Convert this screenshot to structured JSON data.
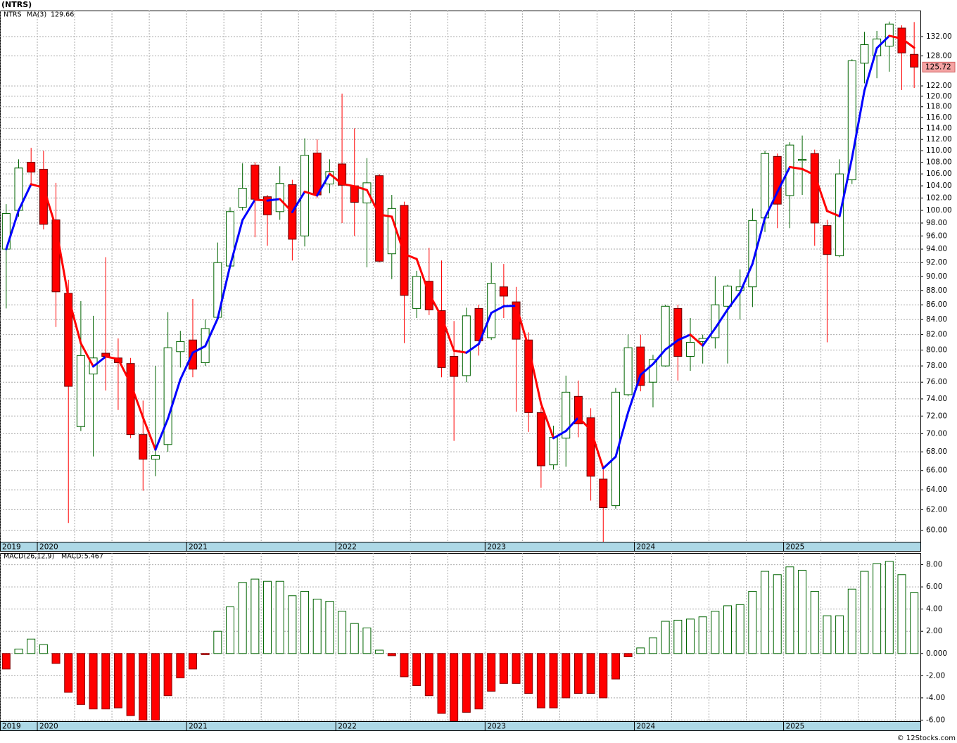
{
  "chart_data": [
    {
      "type": "candlestick",
      "title": "(NTRS)",
      "log": true,
      "grid": true,
      "categories": [
        "2019",
        null,
        null,
        "2020",
        null,
        null,
        null,
        null,
        null,
        null,
        null,
        null,
        null,
        null,
        null,
        "2021",
        null,
        null,
        null,
        null,
        null,
        null,
        null,
        null,
        null,
        null,
        null,
        "2022",
        null,
        null,
        null,
        null,
        null,
        null,
        null,
        null,
        null,
        null,
        null,
        "2023",
        null,
        null,
        null,
        null,
        null,
        null,
        null,
        null,
        null,
        null,
        null,
        "2024",
        null,
        null,
        null,
        null,
        null,
        null,
        null,
        null,
        null,
        null,
        null,
        "2025",
        null,
        null,
        null,
        null,
        null,
        null,
        null,
        null,
        null,
        null
      ],
      "series": [
        {
          "name": "NTRS",
          "up_color": "#006400",
          "down_color": "#ff0000",
          "open": [
            94,
            100,
            108,
            106.8,
            98.5,
            87.6,
            70.8,
            77,
            79.6,
            79,
            78.3,
            69.9,
            67.2,
            68.8,
            79.8,
            81.3,
            78.4,
            84.3,
            91.5,
            100.5,
            107.5,
            102.2,
            99.8,
            104.2,
            96,
            109.6,
            104.3,
            107.7,
            104,
            101.2,
            105.7,
            93.3,
            100.8,
            85.5,
            89.3,
            85.2,
            79.2,
            76.8,
            85.5,
            81.6,
            88.5,
            86.4,
            81.3,
            72.4,
            66.6,
            69.5,
            74.3,
            71.8,
            65.1,
            62.4,
            74.5,
            80.4,
            76,
            78,
            85.5,
            79.2,
            81.1,
            81.6,
            85.8,
            88,
            88.5,
            98.8,
            109,
            102.4,
            108.3,
            109.5,
            97.6,
            93,
            105,
            126.5,
            128,
            130,
            133.8,
            128.3
          ],
          "high": [
            101,
            108.5,
            110.5,
            110,
            104.5,
            89.5,
            86.5,
            84.5,
            92.8,
            81.5,
            79,
            73.8,
            78,
            85,
            82.5,
            86.8,
            84,
            95,
            100.5,
            107.8,
            108,
            102.5,
            107.3,
            105,
            112.2,
            112,
            108.5,
            120.5,
            114,
            108.7,
            106,
            102.5,
            101.4,
            90.8,
            94.2,
            92.3,
            83.8,
            85.6,
            86,
            92,
            91.8,
            88.5,
            82.3,
            73,
            70.9,
            76.8,
            76.2,
            72.9,
            66.2,
            75.3,
            82,
            82,
            79.4,
            86,
            86,
            84.2,
            82,
            90,
            88.8,
            91,
            100.3,
            110,
            109.5,
            111.5,
            112.7,
            110.2,
            98.5,
            108.5,
            127.3,
            133,
            133.2,
            135.2,
            134.4,
            135.1
          ],
          "low": [
            85.5,
            99,
            104,
            97,
            83,
            60.7,
            70.3,
            67.5,
            75,
            72.7,
            69.5,
            63.9,
            65.4,
            68,
            77.8,
            76.6,
            78,
            84,
            91,
            100,
            95.8,
            94.5,
            98.5,
            92.3,
            94.4,
            102,
            102.8,
            98,
            96,
            91.3,
            92,
            89.6,
            80.9,
            84.2,
            84.6,
            76.6,
            69.2,
            76,
            79.3,
            81.3,
            84.2,
            72.5,
            70.2,
            64.2,
            66.1,
            66.4,
            69.6,
            62.9,
            58.9,
            62.1,
            74.3,
            74.9,
            73,
            77.9,
            76.2,
            77.4,
            78.3,
            80.2,
            78.3,
            84,
            85.7,
            96.6,
            97.2,
            97.2,
            102.5,
            94.5,
            81,
            92.8,
            104.3,
            122.5,
            123.5,
            124.8,
            121.2,
            121.6
          ],
          "close": [
            99.5,
            107,
            106.3,
            97.8,
            87.8,
            75.5,
            79.3,
            79,
            79.2,
            78.4,
            69.9,
            67.2,
            67.6,
            80.3,
            81.1,
            77.6,
            82.8,
            92,
            99.8,
            103.6,
            101.8,
            99.3,
            104.4,
            95.5,
            109.2,
            102.5,
            106.4,
            104.1,
            101.3,
            104.5,
            92.2,
            100.3,
            87.3,
            90,
            85.3,
            77.8,
            76.7,
            84.5,
            81.2,
            89,
            87.2,
            81.4,
            72.4,
            66.5,
            69.6,
            74.8,
            71.1,
            65.4,
            62.2,
            74.8,
            80.3,
            75.6,
            78.8,
            85.8,
            79.2,
            81,
            81.5,
            86,
            88.6,
            88.5,
            98.4,
            109.5,
            101,
            111,
            108.5,
            98,
            93.2,
            106,
            127,
            130.3,
            131.5,
            134.66,
            128.6,
            125.72
          ]
        }
      ],
      "ma": {
        "name": "MA(3)",
        "up_color": "#0000ff",
        "down_color": "#ff0000",
        "values": [
          94,
          100,
          104.27,
          103.7,
          97.3,
          87.03,
          80.87,
          77.93,
          79.17,
          78.87,
          75.83,
          71.83,
          68.23,
          71.7,
          76.33,
          79.67,
          80.5,
          84.13,
          91.53,
          98.47,
          101.73,
          101.57,
          101.83,
          99.73,
          103.03,
          102.4,
          106.03,
          104.33,
          103.93,
          103.3,
          99.33,
          99,
          93.27,
          92.53,
          87.53,
          84.37,
          79.93,
          79.67,
          80.8,
          84.9,
          85.8,
          85.87,
          80.33,
          73.43,
          69.5,
          70.3,
          71.83,
          70.43,
          66.23,
          67.47,
          72.43,
          76.9,
          78.23,
          80.07,
          81.27,
          82,
          80.57,
          82.83,
          85.37,
          87.7,
          91.83,
          98.8,
          102.97,
          107.17,
          106.83,
          105.83,
          99.9,
          99.07,
          108.73,
          121.1,
          129.6,
          132.15,
          131.59,
          129.66
        ]
      },
      "ylim": [
        58.9,
        137.6
      ],
      "yticks": [
        {
          "value": 60,
          "label": "60.00"
        },
        {
          "value": 62,
          "label": "62.00"
        },
        {
          "value": 64,
          "label": "64.00"
        },
        {
          "value": 66,
          "label": "66.00"
        },
        {
          "value": 68,
          "label": "68.00"
        },
        {
          "value": 70,
          "label": "70.00"
        },
        {
          "value": 72,
          "label": "72.00"
        },
        {
          "value": 74,
          "label": "74.00"
        },
        {
          "value": 76,
          "label": "76.00"
        },
        {
          "value": 78,
          "label": "78.00"
        },
        {
          "value": 80,
          "label": "80.00"
        },
        {
          "value": 82,
          "label": "82.00"
        },
        {
          "value": 84,
          "label": "84.00"
        },
        {
          "value": 86,
          "label": "86.00"
        },
        {
          "value": 88,
          "label": "88.00"
        },
        {
          "value": 90,
          "label": "90.00"
        },
        {
          "value": 92,
          "label": "92.00"
        },
        {
          "value": 94,
          "label": "94.00"
        },
        {
          "value": 96,
          "label": "96.00"
        },
        {
          "value": 98,
          "label": "98.00"
        },
        {
          "value": 100,
          "label": "100.00"
        },
        {
          "value": 102,
          "label": "102.00"
        },
        {
          "value": 104,
          "label": "104.00"
        },
        {
          "value": 106,
          "label": "106.00"
        },
        {
          "value": 108,
          "label": "108.00"
        },
        {
          "value": 110,
          "label": "110.00"
        },
        {
          "value": 112,
          "label": "112.00"
        },
        {
          "value": 114,
          "label": "114.00"
        },
        {
          "value": 116,
          "label": "116.00"
        },
        {
          "value": 118,
          "label": "118.00"
        },
        {
          "value": 120,
          "label": "120.00"
        },
        {
          "value": 122,
          "label": "122.00"
        },
        {
          "value": 128,
          "label": "128.00"
        },
        {
          "value": 132,
          "label": "132.00"
        }
      ]
    },
    {
      "type": "bar",
      "title": "MACD(26,12,9)",
      "grid": true,
      "series": [
        {
          "name": "MACD:",
          "up_color": "#006400",
          "down_color": "#ff0000",
          "values": [
            -1.4,
            0.4,
            1.3,
            0.8,
            -0.9,
            -3.5,
            -4.6,
            -5.0,
            -5.0,
            -4.9,
            -5.6,
            -6.0,
            -6.0,
            -3.8,
            -2.2,
            -1.4,
            -0.1,
            2.0,
            4.2,
            6.4,
            6.7,
            6.5,
            6.5,
            5.2,
            5.6,
            4.9,
            4.7,
            3.8,
            2.7,
            2.3,
            0.3,
            -0.2,
            -2.1,
            -2.9,
            -3.8,
            -5.4,
            -6.1,
            -5.3,
            -5.0,
            -3.4,
            -2.7,
            -2.7,
            -3.6,
            -4.9,
            -4.9,
            -4.0,
            -3.6,
            -3.6,
            -4.0,
            -2.3,
            -0.3,
            0.5,
            1.4,
            2.9,
            3.0,
            3.1,
            3.3,
            3.8,
            4.3,
            4.4,
            5.6,
            7.4,
            7.1,
            7.8,
            7.5,
            5.6,
            3.4,
            3.4,
            5.8,
            7.4,
            8.1,
            8.3,
            7.1,
            5.467
          ]
        }
      ],
      "ylim": [
        -6.1,
        9.05
      ],
      "yticks": [
        {
          "value": -6,
          "label": "-6.00"
        },
        {
          "value": -4,
          "label": "-4.00"
        },
        {
          "value": -2,
          "label": "-2.00"
        },
        {
          "value": 0,
          "label": "0.000"
        },
        {
          "value": 2,
          "label": "2.00"
        },
        {
          "value": 4,
          "label": "4.00"
        },
        {
          "value": 6,
          "label": "6.00"
        },
        {
          "value": 8,
          "label": "8.00"
        }
      ]
    }
  ],
  "footer": "© 12Stocks.com"
}
